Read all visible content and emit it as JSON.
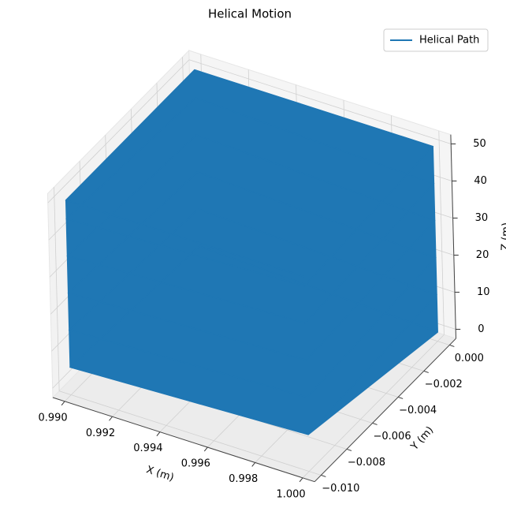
{
  "chart_data": {
    "type": "line3d",
    "title": "Helical Motion",
    "xlabel": "X (m)",
    "ylabel": "Y (m)",
    "zlabel": "Z (m)",
    "legend": "upper right",
    "series": [
      {
        "name": "Helical Path",
        "color": "#1f77b4",
        "x": [
          1.0,
          0.99,
          0.99,
          1.0,
          1.0,
          0.99,
          0.99,
          1.0,
          1.0,
          0.99,
          0.99,
          1.0,
          1.0,
          0.99,
          0.99,
          1.0,
          1.0,
          0.99,
          0.99,
          1.0,
          1.0,
          0.99,
          0.99,
          1.0
        ],
        "y": [
          0.0,
          0.0,
          -0.01,
          -0.01,
          0.0,
          0.0,
          -0.01,
          -0.01,
          0.0,
          0.0,
          -0.01,
          -0.01,
          0.0,
          0.0,
          -0.01,
          -0.01,
          0.0,
          0.0,
          -0.01,
          -0.01,
          0.0,
          0.0,
          -0.01,
          -0.01
        ],
        "z": [
          0,
          2.5,
          5,
          7.5,
          10,
          12.5,
          15,
          17.5,
          20,
          22.5,
          25,
          27.5,
          30,
          32.5,
          35,
          37.5,
          40,
          42.5,
          45,
          47.5,
          50,
          50,
          50,
          50
        ]
      }
    ],
    "xlim": [
      0.9895,
      1.0005
    ],
    "ylim": [
      -0.0105,
      0.0005
    ],
    "zlim": [
      -2.5,
      52.5
    ],
    "xticks": [
      {
        "value": 0.99,
        "label": "0.990"
      },
      {
        "value": 0.992,
        "label": "0.992"
      },
      {
        "value": 0.994,
        "label": "0.994"
      },
      {
        "value": 0.996,
        "label": "0.996"
      },
      {
        "value": 0.998,
        "label": "0.998"
      },
      {
        "value": 1.0,
        "label": "1.000"
      }
    ],
    "yticks": [
      {
        "value": 0.0,
        "label": "0.000"
      },
      {
        "value": -0.002,
        "label": "−0.002"
      },
      {
        "value": -0.004,
        "label": "−0.004"
      },
      {
        "value": -0.006,
        "label": "−0.006"
      },
      {
        "value": -0.008,
        "label": "−0.008"
      },
      {
        "value": -0.01,
        "label": "−0.010"
      }
    ],
    "zticks": [
      0,
      10,
      20,
      30,
      40,
      50
    ],
    "grid": true
  }
}
